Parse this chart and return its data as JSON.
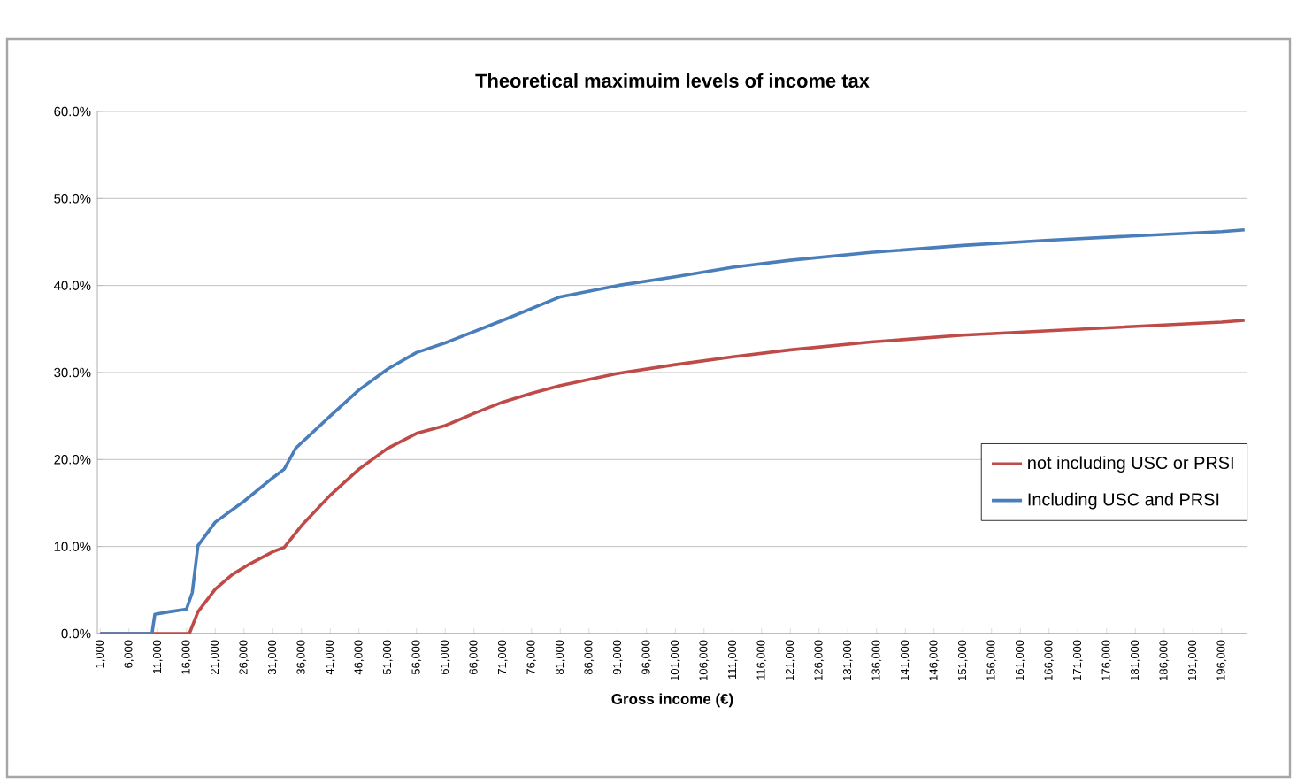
{
  "chart_data": {
    "type": "line",
    "title": "Theoretical maximuim levels of income tax",
    "xlabel": "Gross income (€)",
    "xlim": [
      500,
      200500
    ],
    "xticks": [
      {
        "value": 1000,
        "label": "1,000"
      },
      {
        "value": 6000,
        "label": "6,000"
      },
      {
        "value": 11000,
        "label": "11,000"
      },
      {
        "value": 16000,
        "label": "16,000"
      },
      {
        "value": 21000,
        "label": "21,000"
      },
      {
        "value": 26000,
        "label": "26,000"
      },
      {
        "value": 31000,
        "label": "31,000"
      },
      {
        "value": 36000,
        "label": "36,000"
      },
      {
        "value": 41000,
        "label": "41,000"
      },
      {
        "value": 46000,
        "label": "46,000"
      },
      {
        "value": 51000,
        "label": "51,000"
      },
      {
        "value": 56000,
        "label": "56,000"
      },
      {
        "value": 61000,
        "label": "61,000"
      },
      {
        "value": 66000,
        "label": "66,000"
      },
      {
        "value": 71000,
        "label": "71,000"
      },
      {
        "value": 76000,
        "label": "76,000"
      },
      {
        "value": 81000,
        "label": "81,000"
      },
      {
        "value": 86000,
        "label": "86,000"
      },
      {
        "value": 91000,
        "label": "91,000"
      },
      {
        "value": 96000,
        "label": "96,000"
      },
      {
        "value": 101000,
        "label": "101,000"
      },
      {
        "value": 106000,
        "label": "106,000"
      },
      {
        "value": 111000,
        "label": "111,000"
      },
      {
        "value": 116000,
        "label": "116,000"
      },
      {
        "value": 121000,
        "label": "121,000"
      },
      {
        "value": 126000,
        "label": "126,000"
      },
      {
        "value": 131000,
        "label": "131,000"
      },
      {
        "value": 136000,
        "label": "136,000"
      },
      {
        "value": 141000,
        "label": "141,000"
      },
      {
        "value": 146000,
        "label": "146,000"
      },
      {
        "value": 151000,
        "label": "151,000"
      },
      {
        "value": 156000,
        "label": "156,000"
      },
      {
        "value": 161000,
        "label": "161,000"
      },
      {
        "value": 166000,
        "label": "166,000"
      },
      {
        "value": 171000,
        "label": "171,000"
      },
      {
        "value": 176000,
        "label": "176,000"
      },
      {
        "value": 181000,
        "label": "181,000"
      },
      {
        "value": 186000,
        "label": "186,000"
      },
      {
        "value": 191000,
        "label": "191,000"
      },
      {
        "value": 196000,
        "label": "196,000"
      }
    ],
    "ylim": [
      0,
      60
    ],
    "yticks": [
      {
        "value": 0,
        "label": "0.0%"
      },
      {
        "value": 10,
        "label": "10.0%"
      },
      {
        "value": 20,
        "label": "20.0%"
      },
      {
        "value": 30,
        "label": "30.0%"
      },
      {
        "value": 40,
        "label": "40.0%"
      },
      {
        "value": 50,
        "label": "50.0%"
      },
      {
        "value": 60,
        "label": "60.0%"
      }
    ],
    "grid": "y",
    "legend": "right",
    "marker": "none",
    "line_style": "solid",
    "series": [
      {
        "name": "not including USC or PRSI",
        "color": "#be4b48",
        "x": [
          1000,
          16000,
          16500,
          18000,
          21000,
          24000,
          27000,
          31000,
          33000,
          36000,
          41000,
          46000,
          51000,
          56000,
          61000,
          66000,
          71000,
          76000,
          81000,
          91000,
          101000,
          111000,
          121000,
          135000,
          141000,
          151000,
          166000,
          181000,
          196000,
          200000
        ],
        "values": [
          0,
          0,
          0,
          2.5,
          5.1,
          6.8,
          8.0,
          9.4,
          9.9,
          12.4,
          15.9,
          18.9,
          21.3,
          23.0,
          23.9,
          25.3,
          26.6,
          27.6,
          28.5,
          29.9,
          30.9,
          31.8,
          32.6,
          33.5,
          33.8,
          34.3,
          34.8,
          35.3,
          35.8,
          36.0
        ]
      },
      {
        "name": "Including USC and PRSI",
        "color": "#4a7ebb",
        "x": [
          1000,
          10000,
          10500,
          13000,
          16000,
          17000,
          18000,
          21000,
          26000,
          31000,
          33000,
          35000,
          41000,
          46000,
          51000,
          56000,
          61000,
          66000,
          71000,
          81000,
          91000,
          101000,
          111000,
          121000,
          135000,
          151000,
          166000,
          181000,
          196000,
          200000
        ],
        "values": [
          0,
          0,
          2.2,
          2.5,
          2.8,
          4.7,
          10.1,
          12.8,
          15.2,
          17.9,
          18.9,
          21.3,
          25.0,
          28.0,
          30.4,
          32.3,
          33.4,
          34.7,
          36.0,
          38.7,
          40.0,
          41.0,
          42.1,
          42.9,
          43.8,
          44.6,
          45.2,
          45.7,
          46.2,
          46.4
        ]
      }
    ]
  }
}
